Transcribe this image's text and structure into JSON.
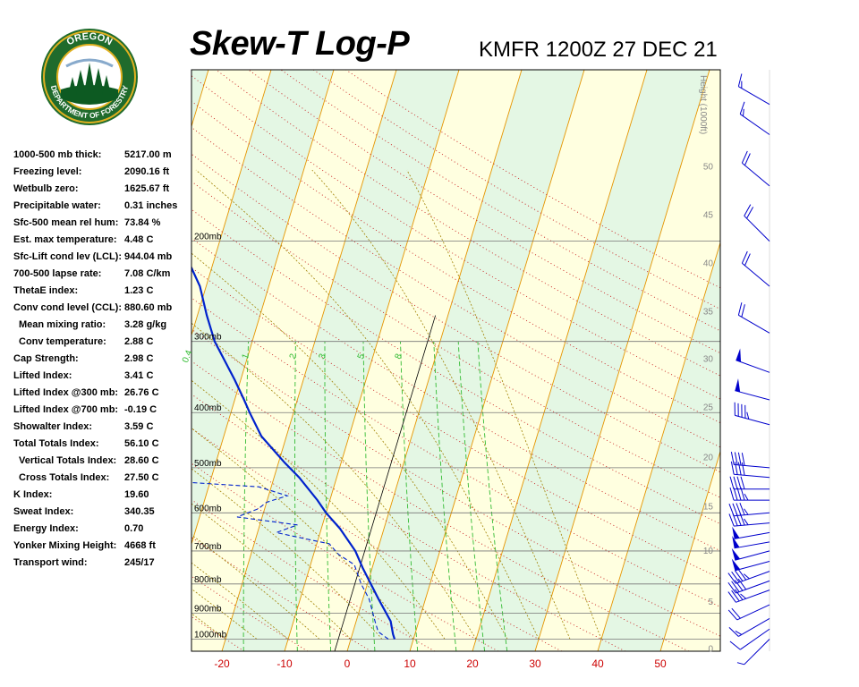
{
  "title": "Skew-T Log-P",
  "station": "KMFR 1200Z 27 DEC 21",
  "logo": {
    "ring_text": "OREGON",
    "ring_text_bottom": "DEPARTMENT OF FORESTRY",
    "colors": {
      "ring": "#1f6b2c",
      "gold": "#e0b020",
      "tree": "#0d5a22"
    }
  },
  "stats": [
    {
      "label": "1000-500 mb thick:",
      "value": "5217.00 m",
      "indent": false
    },
    {
      "label": "Freezing level:",
      "value": "2090.16 ft",
      "indent": false
    },
    {
      "label": "Wetbulb zero:",
      "value": "1625.67 ft",
      "indent": false
    },
    {
      "label": "Precipitable water:",
      "value": "0.31 inches",
      "indent": false
    },
    {
      "label": "Sfc-500 mean rel hum:",
      "value": "73.84 %",
      "indent": false
    },
    {
      "label": "Est. max temperature:",
      "value": "4.48 C",
      "indent": false
    },
    {
      "label": "Sfc-Lift cond lev (LCL):",
      "value": "944.04 mb",
      "indent": false
    },
    {
      "label": "700-500 lapse rate:",
      "value": "7.08 C/km",
      "indent": false
    },
    {
      "label": "ThetaE index:",
      "value": "1.23 C",
      "indent": false
    },
    {
      "label": "Conv cond level (CCL):",
      "value": "880.60 mb",
      "indent": false
    },
    {
      "label": "Mean mixing ratio:",
      "value": "3.28 g/kg",
      "indent": true
    },
    {
      "label": "Conv temperature:",
      "value": "2.88 C",
      "indent": true
    },
    {
      "label": "Cap Strength:",
      "value": "2.98 C",
      "indent": false
    },
    {
      "label": "Lifted Index:",
      "value": "3.41 C",
      "indent": false
    },
    {
      "label": "Lifted Index @300 mb:",
      "value": "26.76 C",
      "indent": false
    },
    {
      "label": "Lifted Index @700 mb:",
      "value": "-0.19 C",
      "indent": false
    },
    {
      "label": "Showalter Index:",
      "value": "3.59 C",
      "indent": false
    },
    {
      "label": "Total Totals Index:",
      "value": "56.10 C",
      "indent": false
    },
    {
      "label": "Vertical Totals Index:",
      "value": "28.60 C",
      "indent": true
    },
    {
      "label": "Cross Totals Index:",
      "value": "27.50 C",
      "indent": true
    },
    {
      "label": "K Index:",
      "value": "19.60",
      "indent": false
    },
    {
      "label": "Sweat Index:",
      "value": "340.35",
      "indent": false
    },
    {
      "label": "Energy Index:",
      "value": "0.70",
      "indent": false
    },
    {
      "label": "Yonker Mixing Height:",
      "value": "4668 ft",
      "indent": false
    },
    {
      "label": "Transport wind:",
      "value": "245/17",
      "indent": false
    }
  ],
  "chart_data": {
    "type": "line",
    "title": "Skew-T Log-P",
    "subtitle": "KMFR 1200Z 27 DEC 21",
    "xlabel": "",
    "ylabel": "",
    "height_axis_label": "Height (1000ft)",
    "x_ticks": [
      -20,
      -10,
      0,
      10,
      20,
      30,
      40,
      50
    ],
    "pressure_levels": [
      {
        "p": 200,
        "label": "200mb"
      },
      {
        "p": 300,
        "label": "300mb"
      },
      {
        "p": 400,
        "label": "400mb"
      },
      {
        "p": 500,
        "label": "500mb"
      },
      {
        "p": 600,
        "label": "600mb"
      },
      {
        "p": 700,
        "label": "700mb"
      },
      {
        "p": 800,
        "label": "800mb"
      },
      {
        "p": 900,
        "label": "900mb"
      },
      {
        "p": 1000,
        "label": "1000mb"
      }
    ],
    "height_ticks": [
      {
        "p": 1040,
        "label": "0"
      },
      {
        "p": 860,
        "label": "5"
      },
      {
        "p": 700,
        "label": "10"
      },
      {
        "p": 585,
        "label": "15"
      },
      {
        "p": 480,
        "label": "20"
      },
      {
        "p": 392,
        "label": "25"
      },
      {
        "p": 322,
        "label": "30"
      },
      {
        "p": 266,
        "label": "35"
      },
      {
        "p": 219,
        "label": "40"
      },
      {
        "p": 180,
        "label": "45"
      },
      {
        "p": 148,
        "label": "50"
      }
    ],
    "mixing_ratio_labels": [
      "0.4",
      "1",
      "2",
      "3",
      "5",
      "8"
    ],
    "series": [
      {
        "name": "",
        "kind": "temperature",
        "color": "#0022cc",
        "points": [
          {
            "p": 1000,
            "t": 7
          },
          {
            "p": 980,
            "t": 6.5
          },
          {
            "p": 930,
            "t": 5.5
          },
          {
            "p": 850,
            "t": 2.5
          },
          {
            "p": 750,
            "t": -1.5
          },
          {
            "p": 700,
            "t": -3.5
          },
          {
            "p": 640,
            "t": -7
          },
          {
            "p": 600,
            "t": -10
          },
          {
            "p": 570,
            "t": -12
          },
          {
            "p": 520,
            "t": -16
          },
          {
            "p": 490,
            "t": -19
          },
          {
            "p": 440,
            "t": -24
          },
          {
            "p": 400,
            "t": -27
          },
          {
            "p": 380,
            "t": -28.5
          },
          {
            "p": 350,
            "t": -31
          },
          {
            "p": 300,
            "t": -36
          },
          {
            "p": 270,
            "t": -38.5
          },
          {
            "p": 240,
            "t": -41
          },
          {
            "p": 210,
            "t": -45
          },
          {
            "p": 195,
            "t": -48
          },
          {
            "p": 170,
            "t": -51
          },
          {
            "p": 145,
            "t": -52
          },
          {
            "p": 130,
            "t": -52
          },
          {
            "p": 115,
            "t": -56
          }
        ]
      },
      {
        "name": "",
        "kind": "dewpoint",
        "color": "#0022cc",
        "points": [
          {
            "p": 1000,
            "t": 6
          },
          {
            "p": 970,
            "t": 4
          },
          {
            "p": 930,
            "t": 3
          },
          {
            "p": 850,
            "t": 1
          },
          {
            "p": 800,
            "t": -1
          },
          {
            "p": 740,
            "t": -3
          },
          {
            "p": 710,
            "t": -6
          },
          {
            "p": 680,
            "t": -8
          },
          {
            "p": 670,
            "t": -11
          },
          {
            "p": 650,
            "t": -17
          },
          {
            "p": 630,
            "t": -14
          },
          {
            "p": 610,
            "t": -24
          },
          {
            "p": 590,
            "t": -21
          },
          {
            "p": 575,
            "t": -20
          },
          {
            "p": 560,
            "t": -17
          },
          {
            "p": 540,
            "t": -22
          },
          {
            "p": 530,
            "t": -34
          },
          {
            "p": 515,
            "t": -42
          },
          {
            "p": 500,
            "t": -44
          },
          {
            "p": 470,
            "t": -44
          },
          {
            "p": 420,
            "t": -43
          },
          {
            "p": 390,
            "t": -45
          },
          {
            "p": 370,
            "t": -50
          },
          {
            "p": 330,
            "t": -52
          },
          {
            "p": 310,
            "t": -51
          },
          {
            "p": 290,
            "t": -55
          },
          {
            "p": 250,
            "t": -62
          },
          {
            "p": 210,
            "t": -65
          },
          {
            "p": 170,
            "t": -70
          },
          {
            "p": 140,
            "t": -72
          },
          {
            "p": 120,
            "t": -78
          },
          {
            "p": 110,
            "t": -83
          }
        ]
      }
    ],
    "winds": [
      {
        "p": 1000,
        "dir": 225,
        "spd": 5
      },
      {
        "p": 960,
        "dir": 235,
        "spd": 10
      },
      {
        "p": 920,
        "dir": 240,
        "spd": 15
      },
      {
        "p": 870,
        "dir": 245,
        "spd": 20
      },
      {
        "p": 820,
        "dir": 250,
        "spd": 35
      },
      {
        "p": 790,
        "dir": 250,
        "spd": 40
      },
      {
        "p": 760,
        "dir": 250,
        "spd": 45
      },
      {
        "p": 730,
        "dir": 255,
        "spd": 50
      },
      {
        "p": 700,
        "dir": 255,
        "spd": 50
      },
      {
        "p": 675,
        "dir": 260,
        "spd": 50
      },
      {
        "p": 650,
        "dir": 260,
        "spd": 50
      },
      {
        "p": 625,
        "dir": 265,
        "spd": 45
      },
      {
        "p": 600,
        "dir": 265,
        "spd": 45
      },
      {
        "p": 570,
        "dir": 270,
        "spd": 45
      },
      {
        "p": 545,
        "dir": 270,
        "spd": 40
      },
      {
        "p": 520,
        "dir": 275,
        "spd": 40
      },
      {
        "p": 500,
        "dir": 275,
        "spd": 40
      },
      {
        "p": 420,
        "dir": 285,
        "spd": 45
      },
      {
        "p": 380,
        "dir": 285,
        "spd": 50
      },
      {
        "p": 340,
        "dir": 290,
        "spd": 50
      },
      {
        "p": 290,
        "dir": 300,
        "spd": 20
      },
      {
        "p": 240,
        "dir": 310,
        "spd": 20
      },
      {
        "p": 200,
        "dir": 315,
        "spd": 20
      },
      {
        "p": 160,
        "dir": 310,
        "spd": 20
      },
      {
        "p": 130,
        "dir": 305,
        "spd": 15
      },
      {
        "p": 115,
        "dir": 300,
        "spd": 15
      }
    ],
    "colors": {
      "isotherm": "#e69500",
      "dry_adiabat": "#c82020",
      "moist_adiabat": "#a08000",
      "mixing_ratio": "#33bb33",
      "isobar": "#777777",
      "band_a": "#ffffe0",
      "band_b": "#e4f7e4",
      "axis_label": "#cc0000",
      "wind": "#0000cc"
    }
  }
}
